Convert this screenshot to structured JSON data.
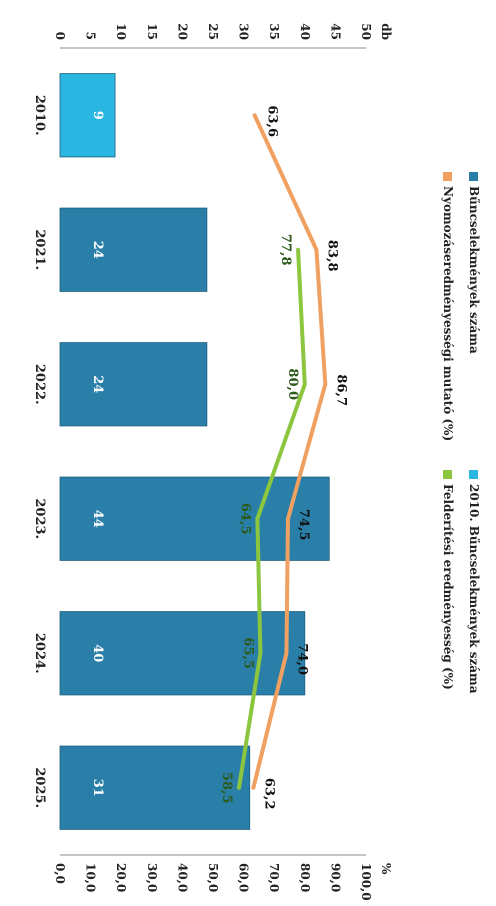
{
  "chart_data": {
    "type": "bar",
    "title": "",
    "categories": [
      "2010.",
      "2021.",
      "2022.",
      "2023.",
      "2024.",
      "2025."
    ],
    "bar_labels": [
      "9",
      "24",
      "24",
      "44",
      "40",
      "31"
    ],
    "series": [
      {
        "name": "Bűncselekmények száma",
        "kind": "bar",
        "axis": "left",
        "values": [
          null,
          24,
          24,
          44,
          40,
          31
        ],
        "color": "#2a7fa8"
      },
      {
        "name": "2010. Bűncselekmények száma",
        "kind": "bar",
        "axis": "left",
        "values": [
          9,
          null,
          null,
          null,
          null,
          null
        ],
        "color": "#29b6e0"
      },
      {
        "name": "Nyomozáseredményességi mutató (%)",
        "kind": "line",
        "axis": "right",
        "values": [
          63.6,
          83.8,
          86.7,
          74.5,
          74.0,
          63.2
        ],
        "labels": [
          "63,6",
          "83,8",
          "86,7",
          "74,5",
          "74,0",
          "63,2"
        ],
        "color": "#f0a060"
      },
      {
        "name": "Felderítési eredményesség (%)",
        "kind": "line",
        "axis": "right",
        "values": [
          null,
          77.8,
          80.0,
          64.5,
          65.5,
          58.5
        ],
        "labels": [
          "",
          "77,8",
          "80,0",
          "64,5",
          "65,5",
          "58,5"
        ],
        "color": "#8cc63f"
      }
    ],
    "left_axis": {
      "unit": "db",
      "ylim": [
        0,
        50
      ],
      "ticks": [
        "0",
        "5",
        "10",
        "15",
        "20",
        "25",
        "30",
        "35",
        "40",
        "45",
        "50"
      ]
    },
    "right_axis": {
      "unit": "%",
      "ylim": [
        0,
        100
      ],
      "ticks": [
        "0,0",
        "10,0",
        "20,0",
        "30,0",
        "40,0",
        "50,0",
        "60,0",
        "70,0",
        "80,0",
        "90,0",
        "100,0"
      ]
    },
    "legend": {
      "placement": "top",
      "entries": [
        {
          "label": "Bűncselekmények száma",
          "color": "#2a7fa8"
        },
        {
          "label": "2010. Bűncselekmények száma",
          "color": "#29b6e0"
        },
        {
          "label": "Nyomozáseredményességi mutató (%)",
          "color": "#f0a060"
        },
        {
          "label": "Felderítési eredményesség (%)",
          "color": "#8cc63f"
        }
      ]
    },
    "grid": false,
    "rotation": "chart rotated 90° clockwise"
  }
}
